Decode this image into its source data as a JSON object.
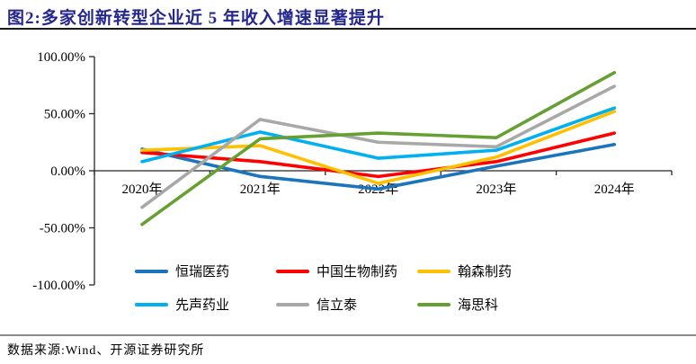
{
  "header": {
    "title": "图2:多家创新转型企业近 5 年收入增速显著提升"
  },
  "chart_data": {
    "type": "line",
    "title": "多家创新转型企业近 5 年收入增速显著提升",
    "categories": [
      "2020年",
      "2021年",
      "2022年",
      "2023年",
      "2024年"
    ],
    "series": [
      {
        "name": "恒瑞医药",
        "color": "#1B75BC",
        "values": [
          19,
          -5,
          -16,
          4,
          23
        ]
      },
      {
        "name": "中国生物制药",
        "color": "#FF0000",
        "values": [
          16,
          8,
          -5,
          8,
          33
        ]
      },
      {
        "name": "翰森制药",
        "color": "#FFC000",
        "values": [
          18,
          22,
          -11,
          12,
          52
        ]
      },
      {
        "name": "先声药业",
        "color": "#00B0F0",
        "values": [
          8,
          34,
          11,
          18,
          55
        ]
      },
      {
        "name": "信立泰",
        "color": "#A8A8A8",
        "values": [
          -32,
          45,
          25,
          21,
          74
        ]
      },
      {
        "name": "海思科",
        "color": "#66A033",
        "values": [
          -47,
          28,
          33,
          29,
          86
        ]
      }
    ],
    "y_tick_values": [
      100,
      50,
      0,
      -50,
      -100
    ],
    "y_tick_labels": [
      "100.00%",
      "50.00%",
      "0.00%",
      "-50.00%",
      "-100.00%"
    ],
    "ylim": [
      -100,
      100
    ],
    "xlabel": "",
    "ylabel": "",
    "grid": false,
    "legend_position": "bottom",
    "axis_color": "#262626"
  },
  "footer": {
    "source": "数据来源:Wind、开源证券研究所"
  }
}
